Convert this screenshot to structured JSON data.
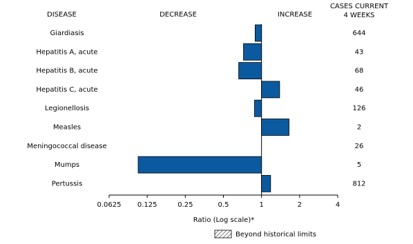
{
  "chart_data": {
    "type": "bar",
    "orientation": "horizontal",
    "category_header": "DISEASE",
    "decrease_label": "DECREASE",
    "increase_label": "INCREASE",
    "cases_header": [
      "CASES CURRENT",
      "4 WEEKS"
    ],
    "categories": [
      "Giardiasis",
      "Hepatitis A, acute",
      "Hepatitis B, acute",
      "Hepatitis C, acute",
      "Legionellosis",
      "Measles",
      "Meningococcal disease",
      "Mumps",
      "Pertussis"
    ],
    "values": [
      0.89,
      0.72,
      0.66,
      1.39,
      0.88,
      1.65,
      1,
      0.106,
      1.18
    ],
    "cases": [
      644,
      43,
      68,
      46,
      126,
      2,
      26,
      5,
      812
    ],
    "color": "#0b5aa0",
    "xlim": [
      0.0625,
      4
    ],
    "xticks": [
      0.0625,
      0.125,
      0.25,
      0.5,
      1,
      2,
      4
    ],
    "log_scale": true,
    "baseline": 1,
    "xlabel": "Ratio (Log scale)*",
    "legend": "Beyond historical limits"
  }
}
